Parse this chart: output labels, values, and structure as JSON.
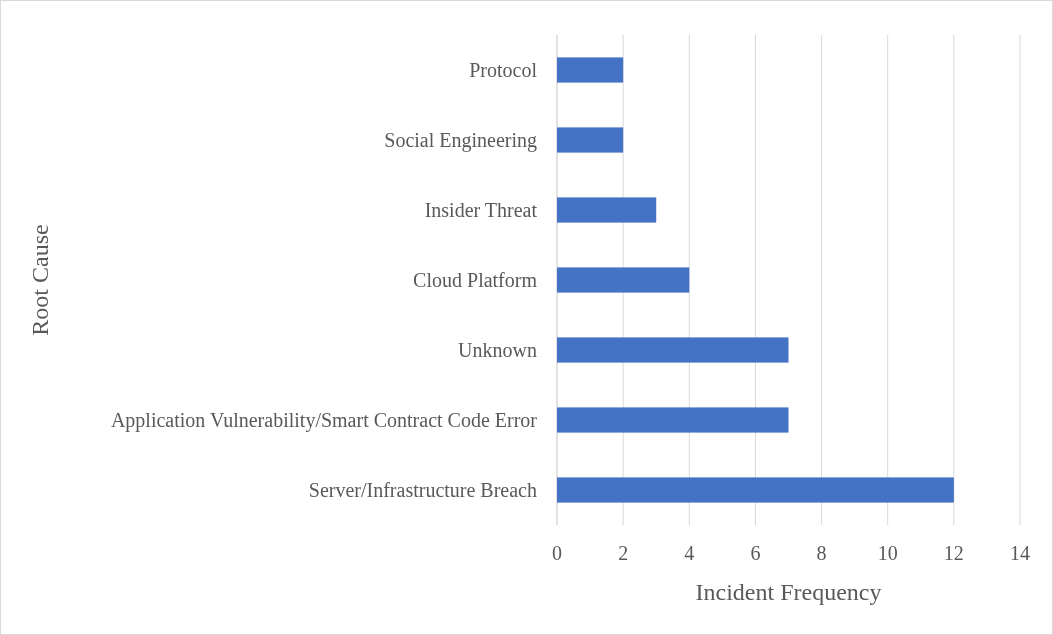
{
  "chart_data": {
    "type": "bar",
    "orientation": "horizontal",
    "categories": [
      "Protocol",
      "Social Engineering",
      "Insider Threat",
      "Cloud Platform",
      "Unknown",
      "Application Vulnerability/Smart Contract Code Error",
      "Server/Infrastructure Breach"
    ],
    "values": [
      2,
      2,
      3,
      4,
      7,
      7,
      12
    ],
    "color": "#4472c4",
    "xlim": [
      0,
      14
    ],
    "xticks": [
      0,
      2,
      4,
      6,
      8,
      10,
      12,
      14
    ],
    "grid": "x",
    "xlabel": "Incident Frequency",
    "ylabel": "Root Cause"
  }
}
